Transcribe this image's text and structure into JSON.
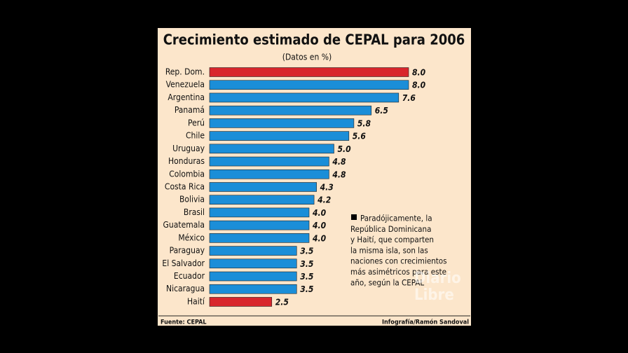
{
  "chart_data": {
    "type": "bar",
    "orientation": "horizontal",
    "title": "Crecimiento estimado de CEPAL para 2006",
    "subtitle": "(Datos en %)",
    "categories": [
      "Rep. Dom.",
      "Venezuela",
      "Argentina",
      "Panamá",
      "Perú",
      "Chile",
      "Uruguay",
      "Honduras",
      "Colombia",
      "Costa Rica",
      "Bolivia",
      "Brasil",
      "Guatemala",
      "México",
      "Paraguay",
      "El Salvador",
      "Ecuador",
      "Nicaragua",
      "Haití"
    ],
    "values": [
      8.0,
      8.0,
      7.6,
      6.5,
      5.8,
      5.6,
      5.0,
      4.8,
      4.8,
      4.3,
      4.2,
      4.0,
      4.0,
      4.0,
      3.5,
      3.5,
      3.5,
      3.5,
      2.5
    ],
    "value_labels": [
      "8.0",
      "8.0",
      "7.6",
      "6.5",
      "5.8",
      "5.6",
      "5.0",
      "4.8",
      "4.8",
      "4.3",
      "4.2",
      "4.0",
      "4.0",
      "4.0",
      "3.5",
      "3.5",
      "3.5",
      "3.5",
      "2.5"
    ],
    "colors": [
      "#d8262c",
      "#1b8ed8",
      "#1b8ed8",
      "#1b8ed8",
      "#1b8ed8",
      "#1b8ed8",
      "#1b8ed8",
      "#1b8ed8",
      "#1b8ed8",
      "#1b8ed8",
      "#1b8ed8",
      "#1b8ed8",
      "#1b8ed8",
      "#1b8ed8",
      "#1b8ed8",
      "#1b8ed8",
      "#1b8ed8",
      "#1b8ed8",
      "#d8262c"
    ],
    "annotation": [
      "Paradójicamente, la",
      "República Dominicana",
      "y Haití, que comparten",
      "la misma isla, son las",
      "naciones con crecimientos",
      "más asimétricos para este",
      "año, según la CEPAL"
    ],
    "source": "Fuente: CEPAL",
    "credit": "Infografía/Ramón Sandoval",
    "watermark": [
      "Diario",
      "Libre"
    ]
  }
}
